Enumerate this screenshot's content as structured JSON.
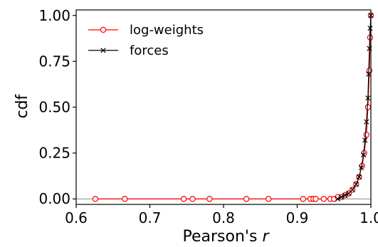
{
  "chart_data": {
    "type": "line",
    "xlabel_prefix": "Pearson's ",
    "xlabel_var": "r",
    "ylabel": "cdf",
    "xlim": [
      0.6,
      1.0
    ],
    "ylim": [
      -0.03,
      1.03
    ],
    "x_ticks": [
      0.6,
      0.7,
      0.8,
      0.9,
      1.0
    ],
    "x_tick_labels": [
      "0.6",
      "0.7",
      "0.8",
      "0.9",
      "1.0"
    ],
    "y_ticks": [
      0.0,
      0.25,
      0.5,
      0.75,
      1.0
    ],
    "y_tick_labels": [
      "0.00",
      "0.25",
      "0.50",
      "0.75",
      "1.00"
    ],
    "legend_position": "top-left",
    "reference_line_y": 0.0,
    "series": [
      {
        "name": "log-weights",
        "color": "#ff0000",
        "marker": "circle",
        "x": [
          0.626,
          0.666,
          0.746,
          0.758,
          0.781,
          0.831,
          0.861,
          0.908,
          0.918,
          0.922,
          0.925,
          0.936,
          0.945,
          0.95,
          0.955,
          0.96,
          0.965,
          0.97,
          0.975,
          0.98,
          0.984,
          0.988,
          0.991,
          0.994,
          0.996,
          0.998,
          0.999,
          1.0
        ],
        "y": [
          0.0,
          0.0,
          0.0,
          0.0,
          0.0,
          0.0,
          0.0,
          0.0,
          0.0,
          0.0,
          0.0,
          0.0,
          0.0,
          0.0,
          0.01,
          0.01,
          0.02,
          0.03,
          0.05,
          0.08,
          0.12,
          0.18,
          0.25,
          0.35,
          0.5,
          0.7,
          0.88,
          1.0
        ]
      },
      {
        "name": "forces",
        "color": "#000000",
        "marker": "x",
        "x": [
          0.955,
          0.96,
          0.965,
          0.97,
          0.975,
          0.98,
          0.984,
          0.987,
          0.99,
          0.992,
          0.994,
          0.996,
          0.997,
          0.998,
          0.999,
          1.0
        ],
        "y": [
          0.0,
          0.01,
          0.02,
          0.03,
          0.05,
          0.08,
          0.12,
          0.17,
          0.24,
          0.32,
          0.42,
          0.55,
          0.68,
          0.82,
          0.93,
          1.0
        ]
      }
    ]
  }
}
